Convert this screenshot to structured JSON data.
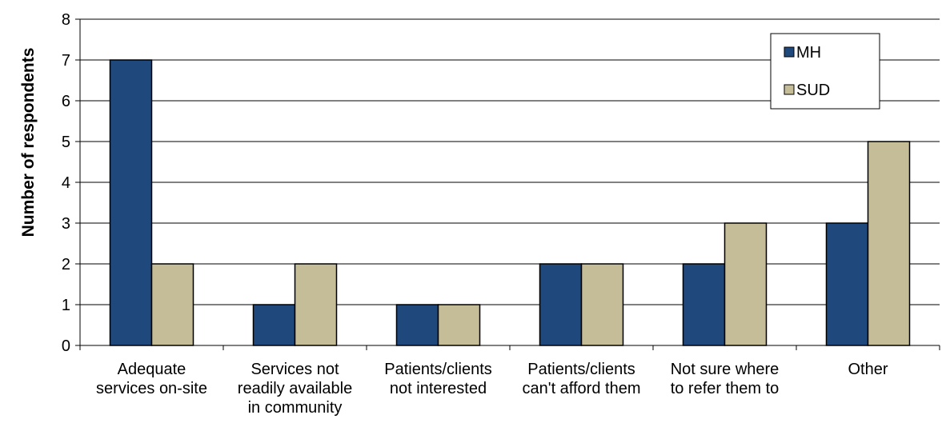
{
  "chart_data": {
    "type": "bar",
    "title": "",
    "xlabel": "",
    "ylabel": "Number of respondents",
    "ylim": [
      0,
      8
    ],
    "yticks": [
      0,
      1,
      2,
      3,
      4,
      5,
      6,
      7,
      8
    ],
    "grid": true,
    "legend_position": "top-right",
    "categories": [
      [
        "Adequate",
        "services on-site"
      ],
      [
        "Services not",
        "readily available",
        "in community"
      ],
      [
        "Patients/clients",
        "not interested"
      ],
      [
        "Patients/clients",
        "can't afford them"
      ],
      [
        "Not sure where",
        "to refer them to"
      ],
      [
        "Other"
      ]
    ],
    "series": [
      {
        "name": "MH",
        "values": [
          7,
          1,
          1,
          2,
          2,
          3
        ],
        "color": "#1f497d"
      },
      {
        "name": "SUD",
        "values": [
          2,
          2,
          1,
          2,
          3,
          5
        ],
        "color": "#c4bd97"
      }
    ]
  }
}
